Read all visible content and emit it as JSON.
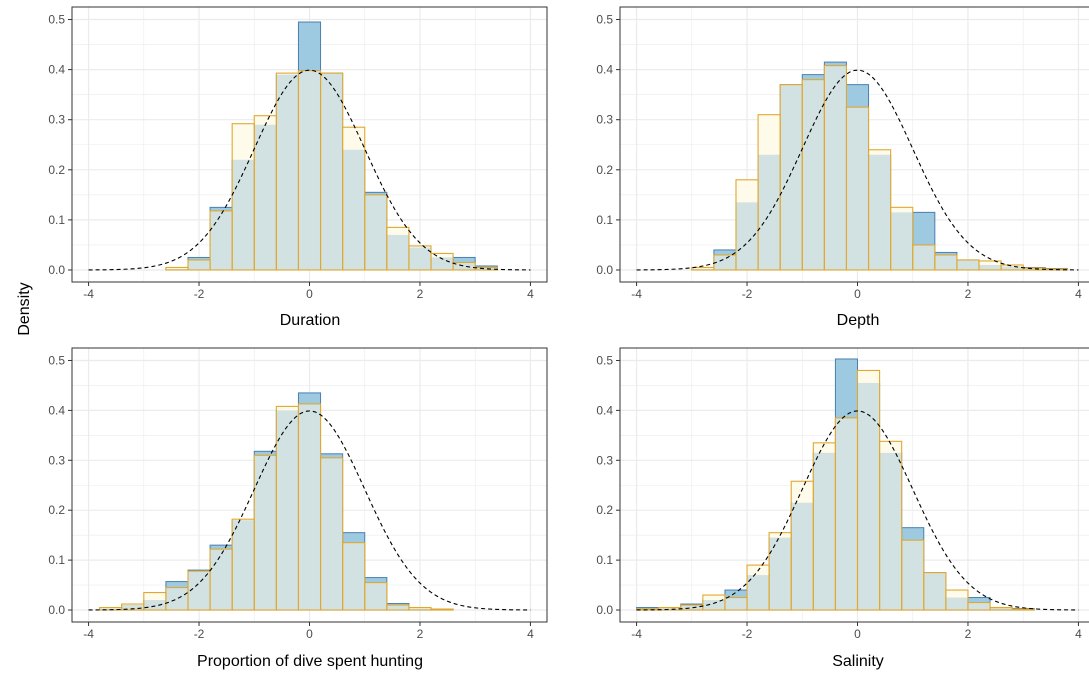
{
  "figure": {
    "ylabel": "Density",
    "colors": {
      "blue_fill": "#9ecae1",
      "blue_stroke": "#4a7fb0",
      "orange_fill": "#fffbeb",
      "orange_stroke": "#e0a830",
      "overlap_fill": "#d2e1e1",
      "grid": "#ebebeb",
      "panel_border": "#333333",
      "normal_curve": "#000000"
    }
  },
  "chart_data": [
    {
      "type": "bar",
      "xlabel": "Duration",
      "xlim": [
        -4.3,
        4.3
      ],
      "ylim": [
        -0.024,
        0.525
      ],
      "xticks": [
        -4,
        -2,
        0,
        2,
        4
      ],
      "yticks": [
        0.0,
        0.1,
        0.2,
        0.3,
        0.4,
        0.5
      ],
      "bin_width": 0.4,
      "overlay": "standard normal density (dashed)",
      "bin_centers": [
        -2.4,
        -2.0,
        -1.6,
        -1.2,
        -0.8,
        -0.4,
        0.0,
        0.4,
        0.8,
        1.2,
        1.6,
        2.0,
        2.4,
        2.8,
        3.2
      ],
      "series": [
        {
          "name": "blue",
          "values": [
            0.002,
            0.025,
            0.125,
            0.22,
            0.29,
            0.39,
            0.495,
            0.393,
            0.24,
            0.155,
            0.07,
            0.045,
            0.025,
            0.025,
            0.008
          ]
        },
        {
          "name": "orange",
          "values": [
            0.005,
            0.02,
            0.118,
            0.292,
            0.308,
            0.393,
            0.398,
            0.393,
            0.285,
            0.15,
            0.085,
            0.048,
            0.033,
            0.015,
            0.005
          ]
        }
      ]
    },
    {
      "type": "bar",
      "xlabel": "Depth",
      "xlim": [
        -4.3,
        4.3
      ],
      "ylim": [
        -0.024,
        0.525
      ],
      "xticks": [
        -4,
        -2,
        0,
        2,
        4
      ],
      "yticks": [
        0.0,
        0.1,
        0.2,
        0.3,
        0.4,
        0.5
      ],
      "bin_width": 0.4,
      "overlay": "standard normal density (dashed)",
      "bin_centers": [
        -2.8,
        -2.4,
        -2.0,
        -1.6,
        -1.2,
        -0.8,
        -0.4,
        0.0,
        0.4,
        0.8,
        1.2,
        1.6,
        2.0,
        2.4,
        2.8,
        3.2,
        3.6
      ],
      "series": [
        {
          "name": "blue",
          "values": [
            0.002,
            0.04,
            0.135,
            0.23,
            0.37,
            0.39,
            0.415,
            0.37,
            0.23,
            0.115,
            0.115,
            0.035,
            0.02,
            0.01,
            0.007,
            0.005,
            0.003
          ]
        },
        {
          "name": "orange",
          "values": [
            0.005,
            0.03,
            0.18,
            0.31,
            0.37,
            0.38,
            0.408,
            0.325,
            0.24,
            0.125,
            0.05,
            0.03,
            0.02,
            0.018,
            0.01,
            0.004,
            0.002
          ]
        }
      ]
    },
    {
      "type": "bar",
      "xlabel": "Proportion of dive spent hunting",
      "xlim": [
        -4.3,
        4.3
      ],
      "ylim": [
        -0.024,
        0.525
      ],
      "xticks": [
        -4,
        -2,
        0,
        2,
        4
      ],
      "yticks": [
        0.0,
        0.1,
        0.2,
        0.3,
        0.4,
        0.5
      ],
      "bin_width": 0.4,
      "overlay": "standard normal density (dashed)",
      "bin_centers": [
        -3.6,
        -3.2,
        -2.8,
        -2.4,
        -2.0,
        -1.6,
        -1.2,
        -0.8,
        -0.4,
        0.0,
        0.4,
        0.8,
        1.2,
        1.6,
        2.0,
        2.4,
        2.8
      ],
      "series": [
        {
          "name": "blue",
          "values": [
            0.003,
            0.01,
            0.02,
            0.057,
            0.08,
            0.13,
            0.18,
            0.318,
            0.4,
            0.435,
            0.313,
            0.155,
            0.065,
            0.013,
            0.003,
            0.001,
            0.0
          ]
        },
        {
          "name": "orange",
          "values": [
            0.005,
            0.012,
            0.035,
            0.045,
            0.078,
            0.122,
            0.182,
            0.31,
            0.408,
            0.413,
            0.305,
            0.135,
            0.055,
            0.01,
            0.005,
            0.002,
            0.0
          ]
        }
      ]
    },
    {
      "type": "bar",
      "xlabel": "Salinity",
      "xlim": [
        -4.3,
        4.3
      ],
      "ylim": [
        -0.024,
        0.525
      ],
      "xticks": [
        -4,
        -2,
        0,
        2,
        4
      ],
      "yticks": [
        0.0,
        0.1,
        0.2,
        0.3,
        0.4,
        0.5
      ],
      "bin_width": 0.4,
      "overlay": "standard normal density (dashed)",
      "bin_centers": [
        -3.8,
        -3.4,
        -3.0,
        -2.6,
        -2.2,
        -1.8,
        -1.4,
        -1.0,
        -0.6,
        -0.2,
        0.2,
        0.6,
        1.0,
        1.4,
        1.8,
        2.2,
        2.6,
        3.0
      ],
      "series": [
        {
          "name": "blue",
          "values": [
            0.005,
            0.005,
            0.012,
            0.02,
            0.04,
            0.07,
            0.145,
            0.215,
            0.315,
            0.503,
            0.455,
            0.315,
            0.165,
            0.075,
            0.025,
            0.025,
            0.005,
            0.003
          ]
        },
        {
          "name": "orange",
          "values": [
            0.002,
            0.005,
            0.01,
            0.03,
            0.025,
            0.09,
            0.155,
            0.258,
            0.335,
            0.385,
            0.48,
            0.338,
            0.14,
            0.075,
            0.04,
            0.015,
            0.005,
            0.002
          ]
        }
      ]
    }
  ]
}
